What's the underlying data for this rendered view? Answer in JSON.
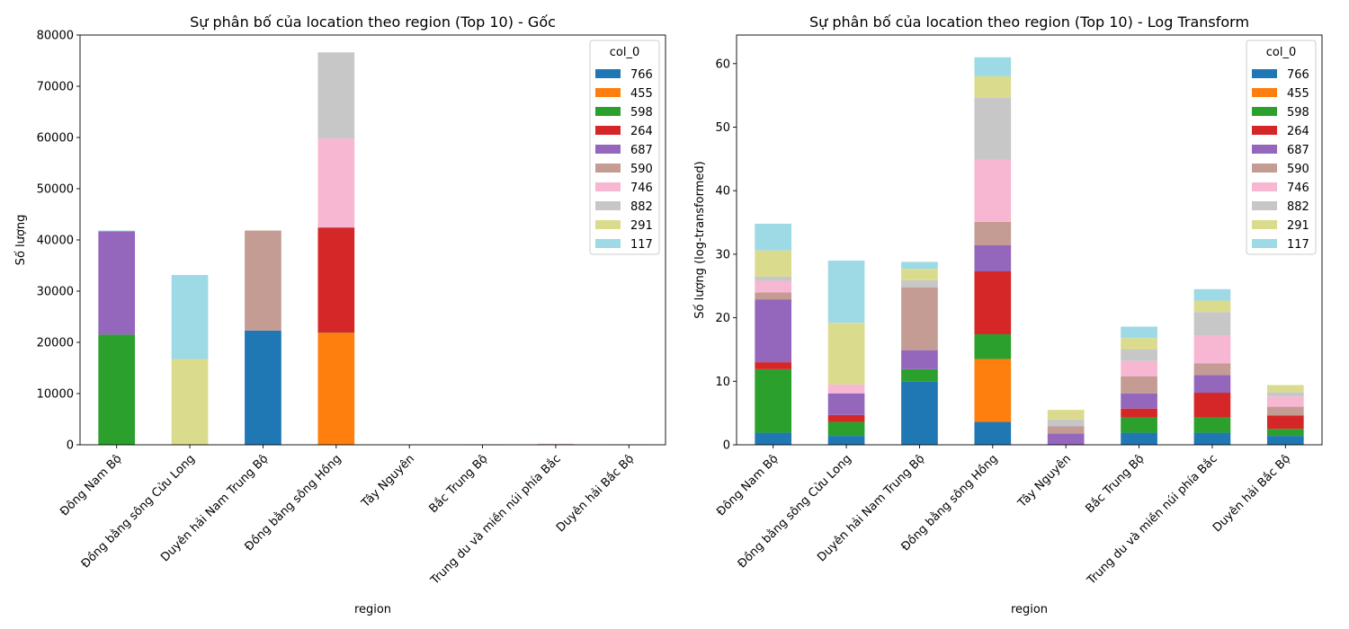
{
  "chart_data": [
    {
      "type": "bar",
      "stacked": true,
      "title": "Sự phân bố của location theo region (Top 10) - Gốc",
      "xlabel": "region",
      "ylabel": "Số lượng",
      "ylim": [
        0,
        80000
      ],
      "yticks": [
        0,
        10000,
        20000,
        30000,
        40000,
        50000,
        60000,
        70000,
        80000
      ],
      "legend_title": "col_0",
      "legend_position": "top-right",
      "categories": [
        "Đông Nam Bộ",
        "Đồng bằng sông Cửu Long",
        "Duyên hải Nam Trung Bộ",
        "Đồng bằng sông Hồng",
        "Tây Nguyên",
        "Bắc Trung Bộ",
        "Trung du và miền núi phía Bắc",
        "Duyên hải Bắc Bộ"
      ],
      "series": [
        {
          "name": "766",
          "color": "#1f77b4",
          "values": [
            6,
            3,
            22300,
            35,
            0,
            6,
            6,
            3
          ]
        },
        {
          "name": "455",
          "color": "#ff7f0e",
          "values": [
            0,
            0,
            0,
            21800,
            0,
            0,
            0,
            0
          ]
        },
        {
          "name": "598",
          "color": "#2ca02c",
          "values": [
            21500,
            8,
            6,
            50,
            0,
            10,
            10,
            2
          ]
        },
        {
          "name": "264",
          "color": "#d62728",
          "values": [
            2,
            2,
            0,
            20500,
            0,
            3,
            50,
            10
          ]
        },
        {
          "name": "687",
          "color": "#9467bd",
          "values": [
            20200,
            30,
            20,
            60,
            5,
            10,
            15,
            0
          ]
        },
        {
          "name": "590",
          "color": "#c49c94",
          "values": [
            2,
            0,
            19500,
            40,
            3,
            15,
            5,
            3
          ]
        },
        {
          "name": "746",
          "color": "#f7b6d2",
          "values": [
            4,
            4,
            0,
            17300,
            0,
            10,
            80,
            4
          ]
        },
        {
          "name": "882",
          "color": "#c7c7c7",
          "values": [
            1,
            0,
            2,
            16800,
            2,
            5,
            40,
            1
          ]
        },
        {
          "name": "291",
          "color": "#dbdb8d",
          "values": [
            60,
            16700,
            5,
            30,
            8,
            5,
            5,
            3
          ]
        },
        {
          "name": "117",
          "color": "#9edae5",
          "values": [
            80,
            16400,
            2,
            30,
            0,
            5,
            5,
            0
          ]
        }
      ]
    },
    {
      "type": "bar",
      "stacked": true,
      "title": "Sự phân bố của location theo region (Top 10) - Log Transform",
      "xlabel": "region",
      "ylabel": "Số lượng (log-transformed)",
      "ylim": [
        0,
        64.5
      ],
      "yticks": [
        0,
        10,
        20,
        30,
        40,
        50,
        60
      ],
      "legend_title": "col_0",
      "legend_position": "top-right",
      "categories": [
        "Đông Nam Bộ",
        "Đồng bằng sông Cửu Long",
        "Duyên hải Nam Trung Bộ",
        "Đồng bằng sông Hồng",
        "Tây Nguyên",
        "Bắc Trung Bộ",
        "Trung du và miền núi phía Bắc",
        "Duyên hải Bắc Bộ"
      ],
      "series": [
        {
          "name": "766",
          "color": "#1f77b4",
          "values": [
            1.9,
            1.4,
            10.0,
            3.6,
            0,
            1.9,
            1.9,
            1.4
          ]
        },
        {
          "name": "455",
          "color": "#ff7f0e",
          "values": [
            0,
            0,
            0,
            9.9,
            0,
            0,
            0,
            0
          ]
        },
        {
          "name": "598",
          "color": "#2ca02c",
          "values": [
            10.0,
            2.2,
            1.9,
            3.9,
            0,
            2.4,
            2.4,
            1.1
          ]
        },
        {
          "name": "264",
          "color": "#d62728",
          "values": [
            1.1,
            1.1,
            0,
            9.9,
            0,
            1.4,
            3.9,
            2.1
          ]
        },
        {
          "name": "687",
          "color": "#9467bd",
          "values": [
            9.9,
            3.4,
            3.0,
            4.1,
            1.8,
            2.4,
            2.8,
            0
          ]
        },
        {
          "name": "590",
          "color": "#c49c94",
          "values": [
            1.1,
            0,
            9.9,
            3.7,
            1.1,
            2.7,
            1.8,
            1.4
          ]
        },
        {
          "name": "746",
          "color": "#f7b6d2",
          "values": [
            1.8,
            1.4,
            0,
            9.8,
            0,
            2.4,
            4.4,
            1.6
          ]
        },
        {
          "name": "882",
          "color": "#c7c7c7",
          "values": [
            0.7,
            0,
            1.1,
            9.7,
            1.1,
            1.8,
            3.7,
            0.7
          ]
        },
        {
          "name": "291",
          "color": "#dbdb8d",
          "values": [
            4.1,
            9.7,
            1.8,
            3.4,
            1.5,
            1.8,
            1.8,
            1.1
          ]
        },
        {
          "name": "117",
          "color": "#9edae5",
          "values": [
            4.2,
            9.8,
            1.1,
            3.0,
            0,
            1.8,
            1.8,
            0
          ]
        }
      ]
    }
  ]
}
